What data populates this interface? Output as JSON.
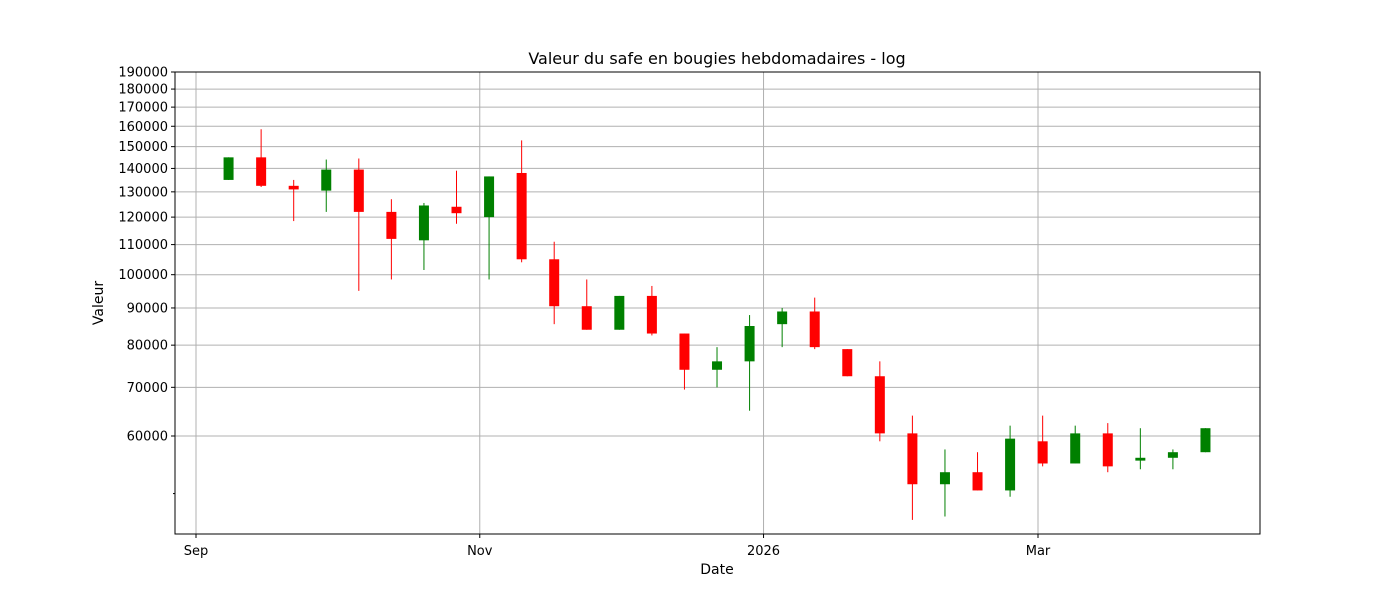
{
  "chart_data": {
    "type": "candlestick",
    "title": "Valeur du safe en bougies hebdomadaires - log",
    "xlabel": "Date",
    "ylabel": "Valeur",
    "y_scale": "log",
    "grid": true,
    "x_ticks": [
      {
        "date": "2025-09-01",
        "label": "Sep"
      },
      {
        "date": "2025-11-01",
        "label": "Nov"
      },
      {
        "date": "2026-01-01",
        "label": "2026"
      },
      {
        "date": "2026-03-01",
        "label": "Mar"
      }
    ],
    "y_ticks": [
      {
        "value": 60000,
        "label": "60000"
      },
      {
        "value": 70000,
        "label": "70000"
      },
      {
        "value": 80000,
        "label": "80000"
      },
      {
        "value": 90000,
        "label": "90000"
      },
      {
        "value": 100000,
        "label": "100000"
      },
      {
        "value": 110000,
        "label": "110000"
      },
      {
        "value": 120000,
        "label": "120000"
      },
      {
        "value": 130000,
        "label": "130000"
      },
      {
        "value": 140000,
        "label": "140000"
      },
      {
        "value": 150000,
        "label": "150000"
      },
      {
        "value": 160000,
        "label": "160000"
      },
      {
        "value": 170000,
        "label": "170000"
      },
      {
        "value": 180000,
        "label": "180000"
      },
      {
        "value": 190000,
        "label": "190000"
      }
    ],
    "y_minor_ticks": [
      50000
    ],
    "colors": {
      "up": "#008000",
      "down": "#ff0000",
      "grid": "#b0b0b0"
    },
    "candles": [
      {
        "date": "2025-09-08",
        "open": 135000,
        "high": 145000,
        "low": 135000,
        "close": 145000
      },
      {
        "date": "2025-09-15",
        "open": 145000,
        "high": 158500,
        "low": 132000,
        "close": 132500
      },
      {
        "date": "2025-09-22",
        "open": 132500,
        "high": 135000,
        "low": 118500,
        "close": 131000
      },
      {
        "date": "2025-09-29",
        "open": 130500,
        "high": 144000,
        "low": 122000,
        "close": 139500
      },
      {
        "date": "2025-10-06",
        "open": 139500,
        "high": 144500,
        "low": 95000,
        "close": 122000
      },
      {
        "date": "2025-10-13",
        "open": 122000,
        "high": 127000,
        "low": 98500,
        "close": 112000
      },
      {
        "date": "2025-10-20",
        "open": 111500,
        "high": 125500,
        "low": 101500,
        "close": 124500
      },
      {
        "date": "2025-10-27",
        "open": 124000,
        "high": 139000,
        "low": 117500,
        "close": 121500
      },
      {
        "date": "2025-11-03",
        "open": 120000,
        "high": 136500,
        "low": 98500,
        "close": 136500
      },
      {
        "date": "2025-11-10",
        "open": 138000,
        "high": 153000,
        "low": 104000,
        "close": 105000
      },
      {
        "date": "2025-11-17",
        "open": 105000,
        "high": 111000,
        "low": 85500,
        "close": 90500
      },
      {
        "date": "2025-11-24",
        "open": 90500,
        "high": 98500,
        "low": 84000,
        "close": 84000
      },
      {
        "date": "2025-12-01",
        "open": 84000,
        "high": 93500,
        "low": 84000,
        "close": 93500
      },
      {
        "date": "2025-12-08",
        "open": 93500,
        "high": 96500,
        "low": 82500,
        "close": 83000
      },
      {
        "date": "2025-12-15",
        "open": 83000,
        "high": 83000,
        "low": 69500,
        "close": 74000
      },
      {
        "date": "2025-12-22",
        "open": 74000,
        "high": 79500,
        "low": 70000,
        "close": 76000
      },
      {
        "date": "2025-12-29",
        "open": 76000,
        "high": 88000,
        "low": 65000,
        "close": 85000
      },
      {
        "date": "2026-01-05",
        "open": 85500,
        "high": 90000,
        "low": 79500,
        "close": 89000
      },
      {
        "date": "2026-01-12",
        "open": 89000,
        "high": 93000,
        "low": 79000,
        "close": 79500
      },
      {
        "date": "2026-01-19",
        "open": 79000,
        "high": 79000,
        "low": 72500,
        "close": 72500
      },
      {
        "date": "2026-01-26",
        "open": 72500,
        "high": 76000,
        "low": 59000,
        "close": 60500
      },
      {
        "date": "2026-02-02",
        "open": 60500,
        "high": 64000,
        "low": 46000,
        "close": 51500
      },
      {
        "date": "2026-02-09",
        "open": 51500,
        "high": 57500,
        "low": 46500,
        "close": 53500
      },
      {
        "date": "2026-02-16",
        "open": 53500,
        "high": 57000,
        "low": 50500,
        "close": 50500
      },
      {
        "date": "2026-02-23",
        "open": 50500,
        "high": 62000,
        "low": 49500,
        "close": 59500
      },
      {
        "date": "2026-03-02",
        "open": 59000,
        "high": 64000,
        "low": 54500,
        "close": 55000
      },
      {
        "date": "2026-03-09",
        "open": 55000,
        "high": 62000,
        "low": 55000,
        "close": 60500
      },
      {
        "date": "2026-03-16",
        "open": 60500,
        "high": 62500,
        "low": 53500,
        "close": 54500
      },
      {
        "date": "2026-03-23",
        "open": 55500,
        "high": 61500,
        "low": 54000,
        "close": 56000
      },
      {
        "date": "2026-03-30",
        "open": 56000,
        "high": 57500,
        "low": 54000,
        "close": 57000
      },
      {
        "date": "2026-04-06",
        "open": 57000,
        "high": 61500,
        "low": 57000,
        "close": 61500
      }
    ]
  }
}
